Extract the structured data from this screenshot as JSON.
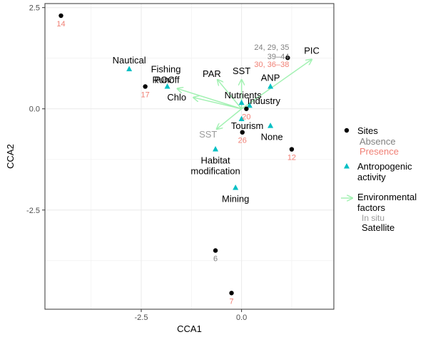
{
  "chart_data": {
    "type": "scatter",
    "xlabel": "CCA1",
    "ylabel": "CCA2",
    "xlim": [
      -4.9,
      2.3
    ],
    "ylim": [
      -4.95,
      2.6
    ],
    "x_ticks": [
      -2.5,
      0.0
    ],
    "x_tick_labels": [
      "-2.5",
      "0.0"
    ],
    "y_ticks": [
      2.5,
      0.0,
      -2.5
    ],
    "y_tick_labels": [
      "2.5",
      "0.0",
      "-2.5"
    ],
    "grid": true,
    "legend_position": "right",
    "colors": {
      "site": "#000000",
      "absence": "#808080",
      "presence": "#f07f74",
      "activity": "#00bfc4",
      "arrow": "#a2f1b2",
      "in_situ": "#9a9a9a",
      "satellite": "#000000"
    },
    "sites": [
      {
        "x": -4.5,
        "y": 2.3,
        "label": "14",
        "group": "presence"
      },
      {
        "x": -2.4,
        "y": 0.55,
        "label": "17",
        "group": "presence"
      },
      {
        "x": 0.12,
        "y": 0.0,
        "label": "20",
        "group": "presence"
      },
      {
        "x": 0.02,
        "y": -0.58,
        "label": "26",
        "group": "presence"
      },
      {
        "x": 1.25,
        "y": -1.0,
        "label": "12",
        "group": "presence"
      },
      {
        "x": -0.65,
        "y": -3.5,
        "label": "6",
        "group": "absence"
      },
      {
        "x": -0.25,
        "y": -4.55,
        "label": "7",
        "group": "presence"
      },
      {
        "x": 1.15,
        "y": 1.26,
        "label": "",
        "group": "presence"
      }
    ],
    "site_annotations": [
      {
        "text": "24, 29, 35",
        "group": "absence"
      },
      {
        "text": "39–44",
        "group": "absence"
      },
      {
        "text": "30, 36–38",
        "group": "presence"
      }
    ],
    "activities": [
      {
        "name": "Nautical",
        "x": -2.8,
        "y": 0.98
      },
      {
        "name": "Fishing\nRunoff",
        "x": -1.85,
        "y": 0.55
      },
      {
        "name": "Nutrients",
        "x": 0.0,
        "y": 0.15
      },
      {
        "name": "Industry",
        "x": 0.2,
        "y": 0.08
      },
      {
        "name": "Tourism",
        "x": 0.0,
        "y": -0.25
      },
      {
        "name": "None",
        "x": 0.72,
        "y": -0.42
      },
      {
        "name": "ANP",
        "x": 0.72,
        "y": 0.55
      },
      {
        "name": "Habitat\nmodification",
        "x": -0.65,
        "y": -1.0
      },
      {
        "name": "Mining",
        "x": -0.15,
        "y": -1.95
      }
    ],
    "environmental_vectors": [
      {
        "name": "PIC",
        "x": 1.75,
        "y": 1.22,
        "source": "satellite"
      },
      {
        "name": "SST",
        "x": 0.0,
        "y": 0.72,
        "source": "satellite"
      },
      {
        "name": "PAR",
        "x": -0.6,
        "y": 0.72,
        "source": "satellite"
      },
      {
        "name": "POC",
        "x": -1.6,
        "y": 0.5,
        "source": "satellite"
      },
      {
        "name": "Chlo",
        "x": -1.2,
        "y": 0.28,
        "source": "satellite"
      },
      {
        "name": "SST",
        "x": -0.62,
        "y": -0.5,
        "source": "in_situ"
      }
    ],
    "legend": [
      {
        "title": "Sites",
        "items": [
          "Absence",
          "Presence"
        ]
      },
      {
        "title": "Antropogenic\nactivity",
        "items": []
      },
      {
        "title": "Environmental\nfactors",
        "items": [
          "In situ",
          "Satellite"
        ]
      }
    ]
  }
}
